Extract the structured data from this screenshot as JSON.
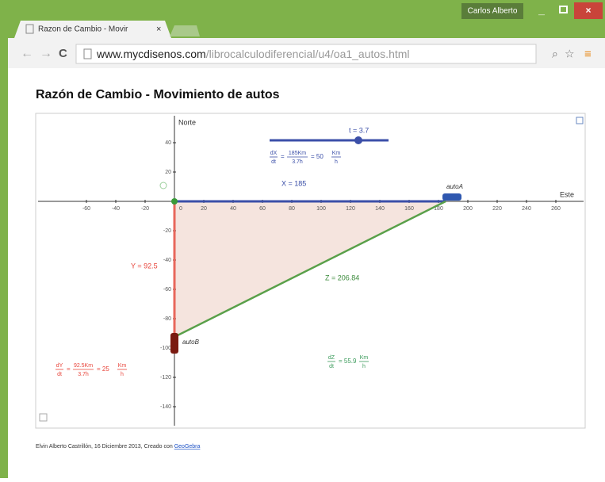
{
  "window": {
    "user": "Carlos Alberto"
  },
  "tab": {
    "title": "Razon de Cambio - Movir"
  },
  "address": {
    "domain": "www.mycdisenos.com",
    "path": "/librocalculodiferencial/u4/oa1_autos.html"
  },
  "page": {
    "title": "Razón de Cambio - Movimiento de autos",
    "footer": "Elvin Alberto Castrillón, 16 Diciembre 2013, Creado con",
    "footer_link": "GeoGebra"
  },
  "applet": {
    "x_axis_label": "Este",
    "y_axis_label": "Norte",
    "xticks": [
      -60,
      -40,
      -20,
      0,
      20,
      40,
      60,
      80,
      100,
      120,
      140,
      160,
      180,
      200,
      220,
      240,
      260
    ],
    "yticks": [
      40,
      20,
      -20,
      -40,
      -60,
      -80,
      -100,
      -120,
      -140
    ],
    "slider": "t = 3.7",
    "x_label": "X = 185",
    "y_label": "Y = 92.5",
    "z_label": "Z = 206.84",
    "car_a": "autoA",
    "car_b": "autoB",
    "formula_x": {
      "d_num": "dX",
      "d_den": "dt",
      "num": "185Km",
      "den": "3.7h",
      "result": "= 50",
      "u_num": "Km",
      "u_den": "h"
    },
    "formula_y": {
      "d_num": "dY",
      "d_den": "dt",
      "num": "92.5Km",
      "den": "3.7h",
      "result": "= 25",
      "u_num": "Km",
      "u_den": "h"
    },
    "formula_z": {
      "d_num": "dZ",
      "d_den": "dt",
      "result": "= 55.9",
      "u_num": "Km",
      "u_den": "h"
    }
  }
}
